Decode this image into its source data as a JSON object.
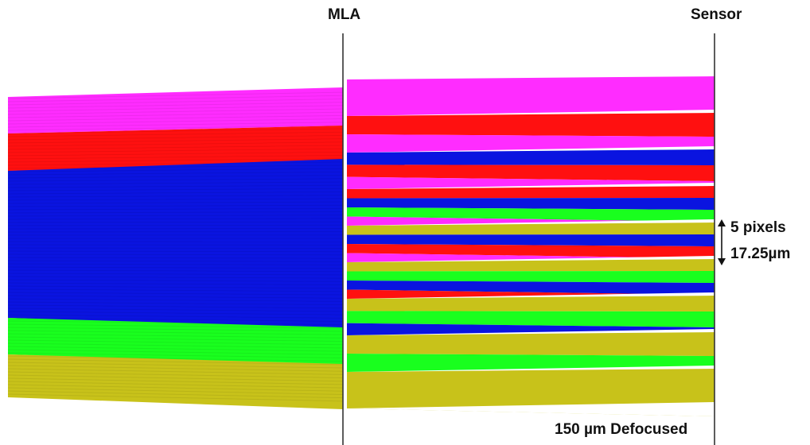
{
  "labels": {
    "mla": "MLA",
    "sensor": "Sensor",
    "pixel_count": "5 pixels",
    "pixel_pitch": "17.25µm",
    "defocus": "150 µm Defocused"
  },
  "colors": {
    "magenta": "#ff2cff",
    "red": "#ff1010",
    "blue": "#0a14e0",
    "green": "#19ff1e",
    "yellow": "#c8c21a",
    "line": "#333333"
  },
  "beams_left": [
    "magenta",
    "red",
    "blue",
    "green",
    "yellow"
  ],
  "lens_cones": [
    [
      "magenta"
    ],
    [
      "red",
      "magenta"
    ],
    [
      "blue",
      "red",
      "magenta"
    ],
    [
      "red",
      "blue",
      "green",
      "magenta"
    ],
    [
      "yellow",
      "blue",
      "red",
      "magenta"
    ],
    [
      "yellow",
      "green",
      "blue",
      "red"
    ],
    [
      "yellow",
      "green",
      "blue"
    ],
    [
      "yellow",
      "green"
    ],
    [
      "yellow"
    ]
  ]
}
